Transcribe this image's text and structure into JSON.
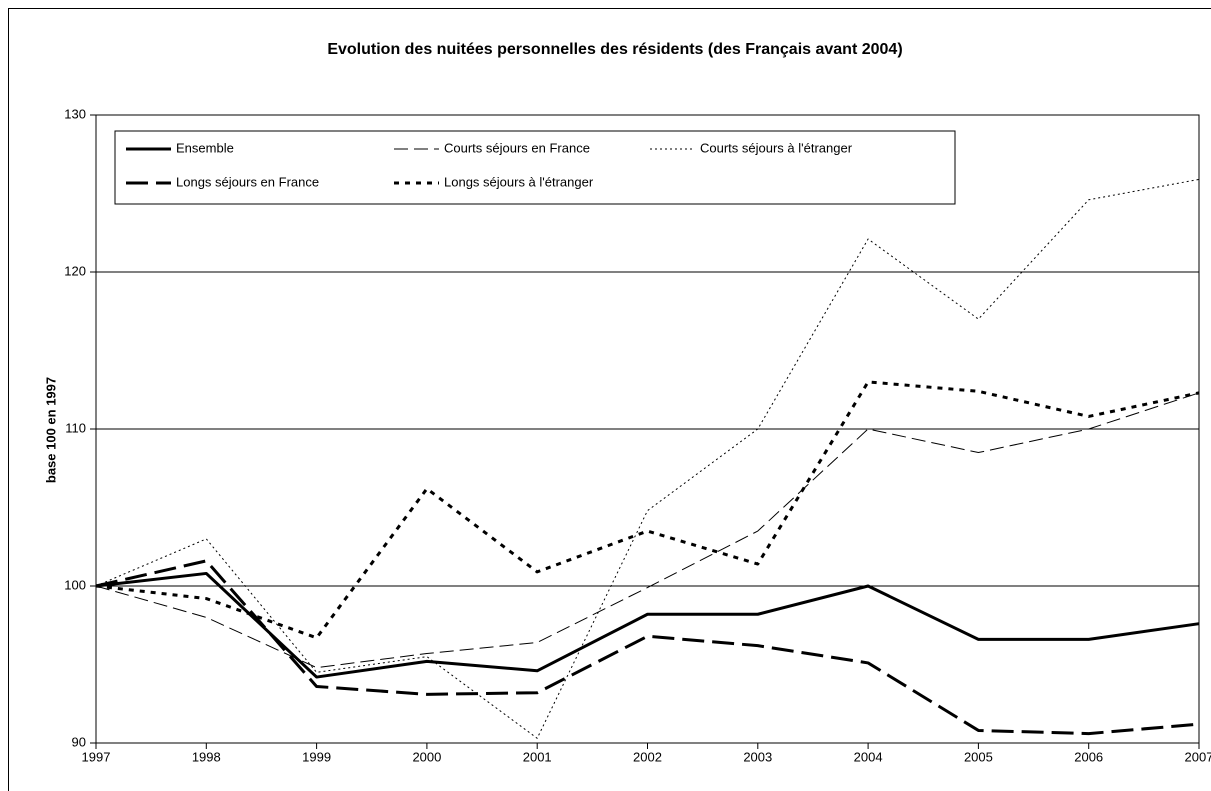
{
  "chart_data": {
    "type": "line",
    "title": "Evolution des nuitées personnelles des résidents (des Français avant 2004)",
    "y_label": "base 100 en 1997",
    "x": [
      1997,
      1998,
      1999,
      2000,
      2001,
      2002,
      2003,
      2004,
      2005,
      2006,
      2007
    ],
    "xlim": [
      1997,
      2007
    ],
    "xticks": [
      1997,
      1998,
      1999,
      2000,
      2001,
      2002,
      2003,
      2004,
      2005,
      2006,
      2007
    ],
    "ylim": [
      90,
      130
    ],
    "yticks": [
      90,
      100,
      110,
      120,
      130
    ],
    "grid": true,
    "legend": "top",
    "series": [
      {
        "name": "Ensemble",
        "color": "#000000",
        "width": 3,
        "dash": "solid",
        "values": [
          100,
          100.8,
          94.2,
          95.2,
          94.6,
          98.2,
          98.2,
          100,
          96.6,
          96.6,
          97.6
        ]
      },
      {
        "name": "Courts séjours en France",
        "color": "#000000",
        "width": 1,
        "dash": "dashed",
        "values": [
          100,
          98.0,
          94.8,
          95.7,
          96.4,
          99.9,
          103.5,
          110,
          108.5,
          110,
          112.3
        ]
      },
      {
        "name": "Courts séjours à l'étranger",
        "color": "#000000",
        "width": 1,
        "dash": "dotted",
        "values": [
          100,
          103,
          94.5,
          95.5,
          90.3,
          104.8,
          110,
          122.1,
          117,
          124.6,
          125.9
        ]
      },
      {
        "name": "Longs séjours en France",
        "color": "#000000",
        "width": 3,
        "dash": "dashed",
        "values": [
          100,
          101.6,
          93.6,
          93.1,
          93.2,
          96.8,
          96.2,
          95.1,
          90.8,
          90.6,
          91.2
        ]
      },
      {
        "name": "Longs séjours à l'étranger",
        "color": "#000000",
        "width": 3,
        "dash": "dotted",
        "values": [
          100,
          99.2,
          96.7,
          106.2,
          100.9,
          103.5,
          101.4,
          113,
          112.4,
          110.8,
          112.3
        ]
      }
    ]
  }
}
